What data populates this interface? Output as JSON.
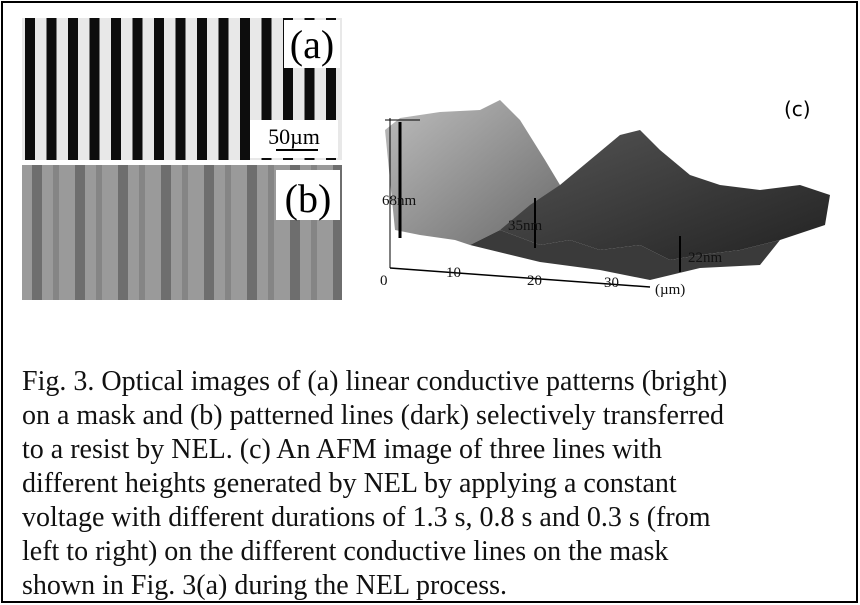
{
  "figure": {
    "panel_a": {
      "label": "(a)",
      "scale_bar": "50µm"
    },
    "panel_b": {
      "label": "(b)"
    },
    "panel_c": {
      "label": "(c)",
      "heights": [
        "68nm",
        "35nm",
        "22nm"
      ],
      "axis_ticks": [
        "0",
        "10",
        "20",
        "30"
      ],
      "axis_unit": "(µm)"
    },
    "caption": [
      "Fig. 3. Optical images of (a) linear conductive patterns (bright)",
      "on a mask and (b) patterned lines (dark) selectively transferred",
      "to a resist by NEL. (c) An AFM image of three lines with",
      "different heights generated by NEL by applying a constant",
      "voltage with different durations of 1.3 s, 0.8 s and 0.3 s (from",
      "left to right) on the different conductive lines on the mask",
      "shown in Fig. 3(a) during the NEL process."
    ]
  }
}
